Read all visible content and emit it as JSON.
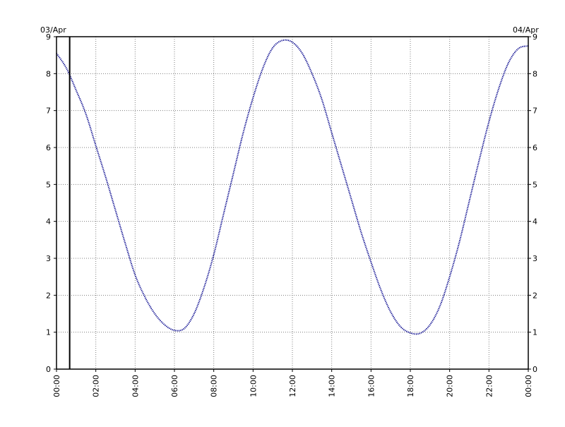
{
  "chart_data": {
    "type": "line",
    "title": "",
    "xlabel": "",
    "ylabel": "",
    "date_labels": {
      "left": "03/Apr",
      "right": "04/Apr"
    },
    "x_unit": "hour of day (03/Apr 00:00 to 04/Apr 00:00)",
    "xlim": [
      0,
      24
    ],
    "ylim": [
      0,
      9
    ],
    "x_ticks": [
      {
        "x": 0,
        "label": "00:00"
      },
      {
        "x": 2,
        "label": "02:00"
      },
      {
        "x": 4,
        "label": "04:00"
      },
      {
        "x": 6,
        "label": "06:00"
      },
      {
        "x": 8,
        "label": "08:00"
      },
      {
        "x": 10,
        "label": "10:00"
      },
      {
        "x": 12,
        "label": "12:00"
      },
      {
        "x": 14,
        "label": "14:00"
      },
      {
        "x": 16,
        "label": "16:00"
      },
      {
        "x": 18,
        "label": "18:00"
      },
      {
        "x": 20,
        "label": "20:00"
      },
      {
        "x": 22,
        "label": "22:00"
      },
      {
        "x": 24,
        "label": "00:00"
      }
    ],
    "y_ticks": [
      0,
      1,
      2,
      3,
      4,
      5,
      6,
      7,
      8,
      9
    ],
    "grid": true,
    "marker_x": 0.67,
    "line_color": "#00008b",
    "series": [
      {
        "x": [
          0,
          0.5,
          1,
          1.5,
          2,
          2.5,
          3,
          3.5,
          4,
          4.5,
          5,
          5.5,
          6,
          6.5,
          7,
          7.5,
          8,
          8.5,
          9,
          9.5,
          10,
          10.5,
          11,
          11.5,
          12,
          12.5,
          13,
          13.5,
          14,
          14.5,
          15,
          15.5,
          16,
          16.5,
          17,
          17.5,
          18,
          18.5,
          19,
          19.5,
          20,
          20.5,
          21,
          21.5,
          22,
          22.5,
          23,
          23.5,
          24
        ],
        "y": [
          8.55,
          8.15,
          7.55,
          6.9,
          6.05,
          5.2,
          4.3,
          3.4,
          2.55,
          1.95,
          1.5,
          1.2,
          1.05,
          1.1,
          1.5,
          2.2,
          3.1,
          4.2,
          5.3,
          6.4,
          7.35,
          8.15,
          8.7,
          8.9,
          8.85,
          8.55,
          8.0,
          7.3,
          6.4,
          5.5,
          4.6,
          3.7,
          2.9,
          2.15,
          1.55,
          1.15,
          0.98,
          0.97,
          1.2,
          1.7,
          2.5,
          3.45,
          4.55,
          5.65,
          6.7,
          7.6,
          8.3,
          8.68,
          8.75
        ]
      }
    ]
  }
}
